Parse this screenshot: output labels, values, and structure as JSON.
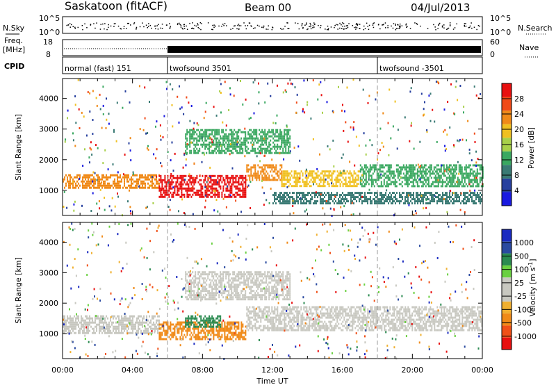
{
  "header": {
    "station": "Saskatoon (fitACF)",
    "beam": "Beam 00",
    "date": "04/Jul/2013"
  },
  "strip_labels": {
    "nsky": "N.Sky",
    "nsearch": "N.Search",
    "freq": "Freq.",
    "freq_unit": "[MHz]",
    "nave": "Nave",
    "cpid": "CPID"
  },
  "strip_ticks": {
    "nsky_top": "10^5",
    "nsky_bottom": "10^0",
    "nsearch_top": "10^5",
    "nsearch_bottom": "10^0",
    "freq_top": "18",
    "freq_bottom": "8",
    "nave_top": "60",
    "nave_bottom": "0"
  },
  "cpid_segments": [
    {
      "label": "normal (fast) 151",
      "start_hour": 0
    },
    {
      "label": "twofsound 3501",
      "start_hour": 6
    },
    {
      "label": "twofsound -3501",
      "start_hour": 18
    }
  ],
  "colors": {
    "power_scale": [
      "#1a1ae0",
      "#27409e",
      "#3a7a74",
      "#3aa860",
      "#a8d04a",
      "#f0c020",
      "#f08a18",
      "#f04a18",
      "#e81010"
    ],
    "velocity_scale": [
      "#e81010",
      "#f05018",
      "#f08a18",
      "#f0b030",
      "#c8c8c0",
      "#c8c8c0",
      "#6ad040",
      "#2a8a50",
      "#2a4aa0",
      "#1a2ac0"
    ]
  },
  "chart_data": [
    {
      "type": "heatmap",
      "panel": "power",
      "ylabel": "Slant Range [km]",
      "xlabel": "Time UT",
      "x_ticks": [
        "00:00",
        "04:00",
        "08:00",
        "12:00",
        "16:00",
        "20:00",
        "00:00"
      ],
      "x_range_hours": [
        0,
        24
      ],
      "y_ticks": [
        "1000",
        "2000",
        "3000",
        "4000"
      ],
      "ylim": [
        180,
        4650
      ],
      "colorbar_label": "Power [dB]",
      "colorbar_ticks": [
        "4",
        "8",
        "12",
        "16",
        "20",
        "24",
        "28"
      ],
      "colorbar_range": [
        0,
        32
      ],
      "bands": [
        {
          "start_hour": 0.0,
          "end_hour": 5.5,
          "center_km": 1300,
          "width_km": 450,
          "value_db": 24
        },
        {
          "start_hour": 5.5,
          "end_hour": 10.5,
          "center_km": 1150,
          "width_km": 700,
          "value_db": 30
        },
        {
          "start_hour": 10.5,
          "end_hour": 12.5,
          "center_km": 1600,
          "width_km": 500,
          "value_db": 22
        },
        {
          "start_hour": 12.5,
          "end_hour": 17.0,
          "center_km": 1400,
          "width_km": 500,
          "value_db": 18
        },
        {
          "start_hour": 17.0,
          "end_hour": 24.0,
          "center_km": 1500,
          "width_km": 700,
          "value_db": 14
        },
        {
          "start_hour": 7.0,
          "end_hour": 13.0,
          "center_km": 2600,
          "width_km": 800,
          "value_db": 12
        },
        {
          "start_hour": 12.0,
          "end_hour": 24.0,
          "center_km": 750,
          "width_km": 400,
          "value_db": 10
        }
      ]
    },
    {
      "type": "heatmap",
      "panel": "velocity",
      "ylabel": "Slant Range [km]",
      "xlabel": "Time UT",
      "x_ticks": [
        "00:00",
        "04:00",
        "08:00",
        "12:00",
        "16:00",
        "20:00",
        "00:00"
      ],
      "x_range_hours": [
        0,
        24
      ],
      "y_ticks": [
        "1000",
        "2000",
        "3000",
        "4000"
      ],
      "ylim": [
        180,
        4650
      ],
      "colorbar_label": "Velocity [m s^-1]",
      "colorbar_ticks": [
        "1000",
        "500",
        "100",
        "25",
        "-25",
        "-100",
        "-500",
        "-1000"
      ],
      "bands": [
        {
          "start_hour": 0.0,
          "end_hour": 5.5,
          "center_km": 1300,
          "width_km": 600,
          "value_ms": 0
        },
        {
          "start_hour": 5.5,
          "end_hour": 10.5,
          "center_km": 1100,
          "width_km": 600,
          "value_ms": -150
        },
        {
          "start_hour": 7.0,
          "end_hour": 9.0,
          "center_km": 1400,
          "width_km": 400,
          "value_ms": 120
        },
        {
          "start_hour": 10.5,
          "end_hour": 24.0,
          "center_km": 1500,
          "width_km": 800,
          "value_ms": 0
        },
        {
          "start_hour": 7.0,
          "end_hour": 13.0,
          "center_km": 2600,
          "width_km": 900,
          "value_ms": 0
        }
      ]
    }
  ]
}
